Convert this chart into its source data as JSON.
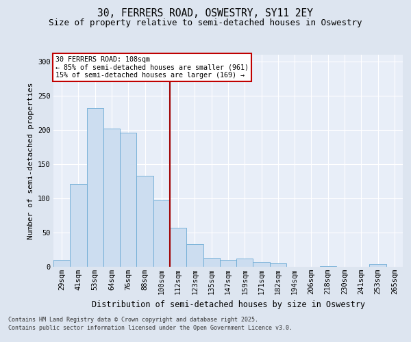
{
  "title1": "30, FERRERS ROAD, OSWESTRY, SY11 2EY",
  "title2": "Size of property relative to semi-detached houses in Oswestry",
  "xlabel": "Distribution of semi-detached houses by size in Oswestry",
  "ylabel": "Number of semi-detached properties",
  "categories": [
    "29sqm",
    "41sqm",
    "53sqm",
    "64sqm",
    "76sqm",
    "88sqm",
    "100sqm",
    "112sqm",
    "123sqm",
    "135sqm",
    "147sqm",
    "159sqm",
    "171sqm",
    "182sqm",
    "194sqm",
    "206sqm",
    "218sqm",
    "230sqm",
    "241sqm",
    "253sqm",
    "265sqm"
  ],
  "values": [
    10,
    121,
    232,
    202,
    196,
    133,
    97,
    57,
    33,
    13,
    10,
    12,
    7,
    5,
    0,
    0,
    1,
    0,
    0,
    4,
    0
  ],
  "bar_color": "#ccddf0",
  "bar_edge_color": "#6aaad4",
  "vline_x_index": 7,
  "vline_color": "#a00000",
  "annotation_line1": "30 FERRERS ROAD: 108sqm",
  "annotation_line2": "← 85% of semi-detached houses are smaller (961)",
  "annotation_line3": "15% of semi-detached houses are larger (169) →",
  "annotation_box_color": "#ffffff",
  "annotation_box_edge": "#c00000",
  "ylim": [
    0,
    310
  ],
  "yticks": [
    0,
    50,
    100,
    150,
    200,
    250,
    300
  ],
  "footer1": "Contains HM Land Registry data © Crown copyright and database right 2025.",
  "footer2": "Contains public sector information licensed under the Open Government Licence v3.0.",
  "bg_color": "#dde5f0",
  "plot_bg_color": "#e8eef8",
  "grid_color": "#ffffff",
  "title1_fontsize": 10.5,
  "title2_fontsize": 9,
  "ylabel_fontsize": 8,
  "xlabel_fontsize": 8.5,
  "tick_fontsize": 7.5,
  "footer_fontsize": 6.0
}
